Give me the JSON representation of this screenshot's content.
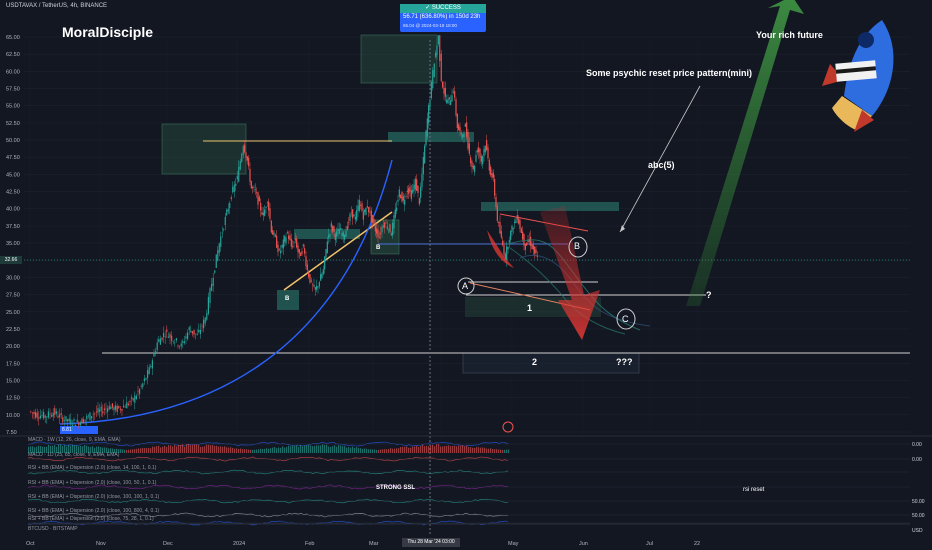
{
  "header": {
    "currency": "USDT",
    "symbol_line": "AVAX / TetherUS, 4h, BINANCE",
    "author": "MoralDisciple"
  },
  "success_badge": {
    "title": "✓ SUCCESS",
    "line1": "56.71 (636.80%) in 150d 23h",
    "line2": "65.04 @ 2024-03-18 18:00"
  },
  "annotations": {
    "rich_future": "Your rich future",
    "psychic": "Some psychic reset price pattern(mini)",
    "abc5": "abc(5)",
    "question": "?",
    "triple_q": "???",
    "wave_A": "A",
    "wave_B": "B",
    "wave_C": "C",
    "wave_1": "1",
    "wave_2": "2",
    "box_B1": "B",
    "box_B2": "B",
    "strong_ssl": "STRONG SSL",
    "rsi_reset": "rsi reset",
    "price_label": "32.66"
  },
  "price_axis": {
    "ticks": [
      "65.00",
      "62.50",
      "60.00",
      "57.50",
      "55.00",
      "52.50",
      "50.00",
      "47.50",
      "45.00",
      "42.50",
      "40.00",
      "37.50",
      "35.00",
      "32.50",
      "30.00",
      "27.50",
      "25.00",
      "22.50",
      "20.00",
      "17.50",
      "15.00",
      "12.50",
      "10.00",
      "7.50"
    ],
    "current_price": "32.66",
    "low_label": "8.81"
  },
  "time_axis": {
    "ticks": [
      "Oct",
      "Nov",
      "Dec",
      "2024",
      "Feb",
      "Mar",
      "Apr",
      "May",
      "Jun",
      "Jul",
      "22"
    ],
    "cursor_label": "Thu 28 Mar '24  03:00"
  },
  "indicators": [
    {
      "label": "MACD · 1W (12, 26, close, 9, EMA, EMA)",
      "value": "0.00"
    },
    {
      "label": "MACD · 1D (25, 85, close, 9, EMA, EMA)",
      "value": "0.00"
    },
    {
      "label": "RSI + BB (EMA) + Dispersion (2.0) (close, 14, 100, 1, 0.1)",
      "value": ""
    },
    {
      "label": "RSI + BB (EMA) + Dispersion (2.0) (close, 100, 50, 1, 0.1)",
      "value": ""
    },
    {
      "label": "RSI + BB (EMA) + Dispersion (2.0) (close, 100, 100, 1, 0.1)",
      "value": "50.00"
    },
    {
      "label": "RSI + BB (EMA) + Dispersion (2.0) (close, 100, 800, 4, 0.1)",
      "value": "50.00"
    },
    {
      "label": "RSI + BB (EMA) + Dispersion (2.0) (close, 75, 28, 1, 0.1)",
      "value": ""
    }
  ],
  "footer": {
    "btc_label": "BTCUSD · BITSTAMP",
    "usd": "USD"
  },
  "colors": {
    "background": "#131722",
    "up": "#26a69a",
    "down": "#ef5350",
    "grid": "#1e222d",
    "green_arrow": "#3b8b3b",
    "red_arrow": "#b71c2c",
    "fib_orange": "#f0c36b",
    "blue_curve": "#2962ff"
  },
  "chart_data": {
    "type": "line",
    "title": "AVAX / TetherUS, 4h, BINANCE",
    "xlabel": "",
    "ylabel": "",
    "ylim": [
      7.5,
      66
    ],
    "x": [
      "Oct",
      "Nov",
      "Dec",
      "2024",
      "Feb",
      "Mar",
      "Apr",
      "May"
    ],
    "series": [
      {
        "name": "",
        "values": [
          9.5,
          11.2,
          21,
          43,
          32,
          40,
          48,
          34
        ]
      }
    ],
    "key_levels": [
      50.0,
      40.0,
      35.0,
      32.66,
      29.0,
      27.5,
      19.0
    ],
    "path": [
      [
        0,
        10.5
      ],
      [
        8,
        10.0
      ],
      [
        16,
        9.8
      ],
      [
        24,
        10.4
      ],
      [
        32,
        9.6
      ],
      [
        40,
        9.0
      ],
      [
        48,
        8.9
      ],
      [
        56,
        9.4
      ],
      [
        64,
        10.2
      ],
      [
        72,
        10.6
      ],
      [
        80,
        11.2
      ],
      [
        88,
        10.8
      ],
      [
        96,
        11.4
      ],
      [
        104,
        12.2
      ],
      [
        112,
        14.0
      ],
      [
        120,
        16.5
      ],
      [
        128,
        20.5
      ],
      [
        136,
        22.0
      ],
      [
        144,
        21.0
      ],
      [
        152,
        20.0
      ],
      [
        160,
        22.5
      ],
      [
        168,
        21.5
      ],
      [
        176,
        24.0
      ],
      [
        184,
        30.5
      ],
      [
        190,
        35.0
      ],
      [
        196,
        38.5
      ],
      [
        202,
        42.0
      ],
      [
        208,
        44.5
      ],
      [
        214,
        49.5
      ],
      [
        218,
        47.0
      ],
      [
        222,
        43.0
      ],
      [
        226,
        42.5
      ],
      [
        230,
        40.5
      ],
      [
        234,
        39.0
      ],
      [
        238,
        41.5
      ],
      [
        242,
        37.0
      ],
      [
        246,
        35.5
      ],
      [
        250,
        33.5
      ],
      [
        254,
        35.0
      ],
      [
        258,
        36.5
      ],
      [
        262,
        34.5
      ],
      [
        266,
        35.5
      ],
      [
        270,
        33.0
      ],
      [
        274,
        34.5
      ],
      [
        278,
        31.0
      ],
      [
        282,
        29.0
      ],
      [
        286,
        28.0
      ],
      [
        290,
        29.5
      ],
      [
        294,
        31.0
      ],
      [
        298,
        35.5
      ],
      [
        302,
        37.5
      ],
      [
        306,
        36.0
      ],
      [
        310,
        37.0
      ],
      [
        314,
        36.0
      ],
      [
        318,
        37.5
      ],
      [
        322,
        39.5
      ],
      [
        326,
        38.5
      ],
      [
        330,
        41.0
      ],
      [
        334,
        39.0
      ],
      [
        338,
        40.5
      ],
      [
        342,
        38.5
      ],
      [
        346,
        37.0
      ],
      [
        350,
        36.0
      ],
      [
        354,
        38.0
      ],
      [
        358,
        37.5
      ],
      [
        362,
        36.5
      ],
      [
        366,
        39.5
      ],
      [
        370,
        42.5
      ],
      [
        374,
        41.0
      ],
      [
        378,
        43.0
      ],
      [
        382,
        42.0
      ],
      [
        386,
        44.0
      ],
      [
        390,
        41.0
      ],
      [
        394,
        47.0
      ],
      [
        398,
        53.0
      ],
      [
        402,
        58.0
      ],
      [
        405,
        61.5
      ],
      [
        409,
        65.0
      ],
      [
        412,
        59.0
      ],
      [
        416,
        56.0
      ],
      [
        420,
        55.5
      ],
      [
        424,
        57.5
      ],
      [
        428,
        52.0
      ],
      [
        432,
        50.5
      ],
      [
        436,
        52.0
      ],
      [
        440,
        48.0
      ],
      [
        444,
        45.5
      ],
      [
        448,
        49.0
      ],
      [
        452,
        47.0
      ],
      [
        456,
        49.5
      ],
      [
        460,
        46.0
      ],
      [
        464,
        44.0
      ],
      [
        468,
        38.5
      ],
      [
        472,
        35.5
      ],
      [
        476,
        33.0
      ],
      [
        480,
        36.0
      ],
      [
        484,
        37.5
      ],
      [
        488,
        39.0
      ],
      [
        492,
        36.5
      ],
      [
        496,
        34.5
      ],
      [
        500,
        35.5
      ],
      [
        504,
        34.0
      ],
      [
        508,
        32.7
      ]
    ]
  }
}
